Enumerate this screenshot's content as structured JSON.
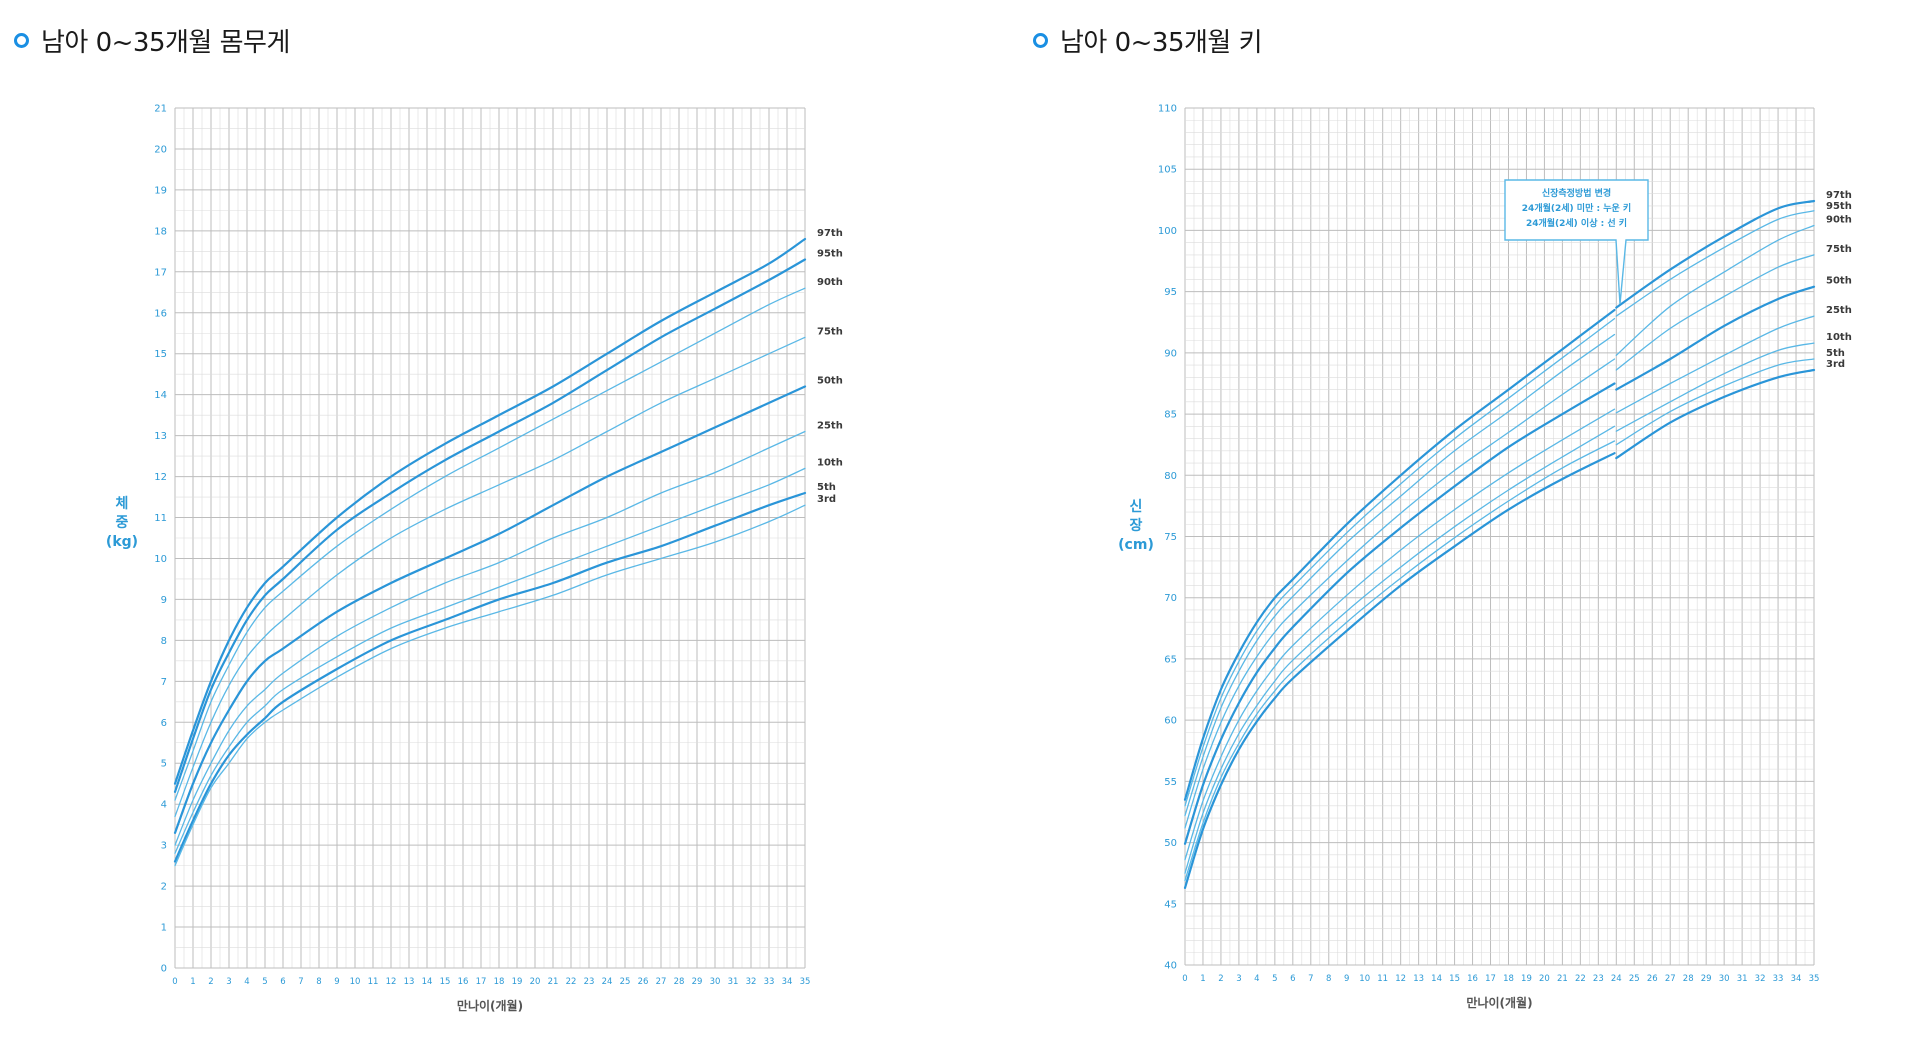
{
  "colors": {
    "accent": "#1a8fe3",
    "line_light": "#5ab8e6",
    "line_bold": "#2a95d8",
    "grid": "#cccccc",
    "axis_text": "#2c9ad6"
  },
  "icon": "circle-bullet-icon",
  "weight_chart": {
    "title": "남아 0~35개월 몸무게",
    "xlabel": "만나이(개월)",
    "ylabel_lines": [
      "체",
      "중",
      "(kg)"
    ]
  },
  "height_chart": {
    "title": "남아 0~35개월 키",
    "xlabel": "만나이(개월)",
    "ylabel_lines": [
      "신",
      "장",
      "(cm)"
    ],
    "annotation_lines": [
      "신장측정방법 변경",
      "24개월(2세) 미만 : 누운 키",
      "24개월(2세) 이상 : 선 키"
    ]
  },
  "chart_data": [
    {
      "type": "line",
      "title": "남아 0~35개월 몸무게",
      "xlabel": "만나이(개월)",
      "ylabel": "체중 (kg)",
      "xlim": [
        0,
        35
      ],
      "ylim": [
        0,
        21
      ],
      "grid": true,
      "x": [
        0,
        1,
        2,
        3,
        4,
        5,
        6,
        9,
        12,
        15,
        18,
        21,
        24,
        27,
        30,
        33,
        35
      ],
      "series": [
        {
          "name": "97th",
          "bold": true,
          "values": [
            4.5,
            5.8,
            7.0,
            8.0,
            8.8,
            9.4,
            9.8,
            11.0,
            12.0,
            12.8,
            13.5,
            14.2,
            15.0,
            15.8,
            16.5,
            17.2,
            17.8
          ]
        },
        {
          "name": "95th",
          "bold": true,
          "values": [
            4.3,
            5.6,
            6.8,
            7.7,
            8.5,
            9.1,
            9.5,
            10.7,
            11.6,
            12.4,
            13.1,
            13.8,
            14.6,
            15.4,
            16.1,
            16.8,
            17.3
          ]
        },
        {
          "name": "90th",
          "bold": false,
          "values": [
            4.1,
            5.3,
            6.5,
            7.4,
            8.2,
            8.8,
            9.2,
            10.3,
            11.2,
            12.0,
            12.7,
            13.4,
            14.1,
            14.8,
            15.5,
            16.2,
            16.6
          ]
        },
        {
          "name": "75th",
          "bold": false,
          "values": [
            3.7,
            4.9,
            6.0,
            6.9,
            7.6,
            8.1,
            8.5,
            9.6,
            10.5,
            11.2,
            11.8,
            12.4,
            13.1,
            13.8,
            14.4,
            15.0,
            15.4
          ]
        },
        {
          "name": "50th",
          "bold": true,
          "values": [
            3.3,
            4.5,
            5.5,
            6.3,
            7.0,
            7.5,
            7.8,
            8.7,
            9.4,
            10.0,
            10.6,
            11.3,
            12.0,
            12.6,
            13.2,
            13.8,
            14.2
          ]
        },
        {
          "name": "25th",
          "bold": false,
          "values": [
            3.0,
            4.1,
            5.0,
            5.8,
            6.4,
            6.8,
            7.2,
            8.1,
            8.8,
            9.4,
            9.9,
            10.5,
            11.0,
            11.6,
            12.1,
            12.7,
            13.1
          ]
        },
        {
          "name": "10th",
          "bold": false,
          "values": [
            2.8,
            3.8,
            4.7,
            5.4,
            6.0,
            6.4,
            6.8,
            7.6,
            8.3,
            8.8,
            9.3,
            9.8,
            10.3,
            10.8,
            11.3,
            11.8,
            12.2
          ]
        },
        {
          "name": "5th",
          "bold": true,
          "values": [
            2.6,
            3.6,
            4.5,
            5.2,
            5.7,
            6.1,
            6.5,
            7.3,
            8.0,
            8.5,
            9.0,
            9.4,
            9.9,
            10.3,
            10.8,
            11.3,
            11.6
          ]
        },
        {
          "name": "3rd",
          "bold": false,
          "values": [
            2.5,
            3.5,
            4.4,
            5.0,
            5.6,
            6.0,
            6.3,
            7.1,
            7.8,
            8.3,
            8.7,
            9.1,
            9.6,
            10.0,
            10.4,
            10.9,
            11.3
          ]
        }
      ]
    },
    {
      "type": "line",
      "title": "남아 0~35개월 키",
      "xlabel": "만나이(개월)",
      "ylabel": "신장 (cm)",
      "xlim": [
        0,
        35
      ],
      "ylim": [
        40,
        110
      ],
      "grid": true,
      "break_at": 24,
      "x": [
        0,
        1,
        2,
        3,
        4,
        5,
        6,
        9,
        12,
        15,
        18,
        21,
        23.9,
        24,
        27,
        30,
        33,
        35
      ],
      "series": [
        {
          "name": "97th",
          "bold": true,
          "values": [
            53.5,
            58.5,
            62.5,
            65.5,
            68.0,
            70.0,
            71.5,
            76.0,
            80.0,
            83.7,
            87.0,
            90.3,
            93.5,
            93.7,
            96.8,
            99.5,
            101.8,
            102.4
          ]
        },
        {
          "name": "95th",
          "bold": false,
          "values": [
            53.0,
            57.8,
            61.8,
            64.8,
            67.3,
            69.3,
            70.9,
            75.3,
            79.3,
            83.0,
            86.3,
            89.6,
            92.8,
            93.0,
            96.0,
            98.6,
            100.9,
            101.6
          ]
        },
        {
          "name": "90th",
          "bold": false,
          "values": [
            52.2,
            57.0,
            61.0,
            64.0,
            66.5,
            68.5,
            70.1,
            74.5,
            78.3,
            82.0,
            85.2,
            88.5,
            91.5,
            89.8,
            93.8,
            96.6,
            99.2,
            100.4
          ]
        },
        {
          "name": "75th",
          "bold": false,
          "values": [
            51.2,
            56.0,
            59.8,
            62.8,
            65.2,
            67.2,
            68.8,
            73.0,
            76.9,
            80.4,
            83.5,
            86.6,
            89.5,
            88.6,
            92.0,
            94.6,
            97.0,
            98.0
          ]
        },
        {
          "name": "50th",
          "bold": true,
          "values": [
            49.9,
            54.7,
            58.4,
            61.4,
            63.9,
            65.9,
            67.6,
            72.0,
            75.7,
            79.1,
            82.3,
            85.0,
            87.5,
            87.0,
            89.5,
            92.2,
            94.4,
            95.4
          ]
        },
        {
          "name": "25th",
          "bold": false,
          "values": [
            48.6,
            53.4,
            57.0,
            60.0,
            62.4,
            64.4,
            66.1,
            70.2,
            73.9,
            77.2,
            80.2,
            82.9,
            85.4,
            85.1,
            87.5,
            89.8,
            92.0,
            93.0
          ]
        },
        {
          "name": "10th",
          "bold": false,
          "values": [
            47.5,
            52.4,
            56.0,
            58.9,
            61.2,
            63.2,
            64.9,
            68.9,
            72.5,
            75.8,
            78.8,
            81.5,
            84.0,
            83.6,
            86.0,
            88.3,
            90.2,
            90.8
          ]
        },
        {
          "name": "5th",
          "bold": false,
          "values": [
            46.9,
            51.6,
            55.3,
            58.1,
            60.5,
            62.4,
            64.0,
            68.0,
            71.6,
            74.9,
            77.9,
            80.6,
            82.8,
            82.5,
            85.2,
            87.3,
            89.0,
            89.5
          ]
        },
        {
          "name": "3rd",
          "bold": true,
          "values": [
            46.3,
            51.1,
            54.7,
            57.6,
            59.9,
            61.8,
            63.4,
            67.3,
            71.0,
            74.2,
            77.2,
            79.7,
            81.8,
            81.4,
            84.3,
            86.4,
            88.0,
            88.6
          ]
        }
      ]
    }
  ]
}
